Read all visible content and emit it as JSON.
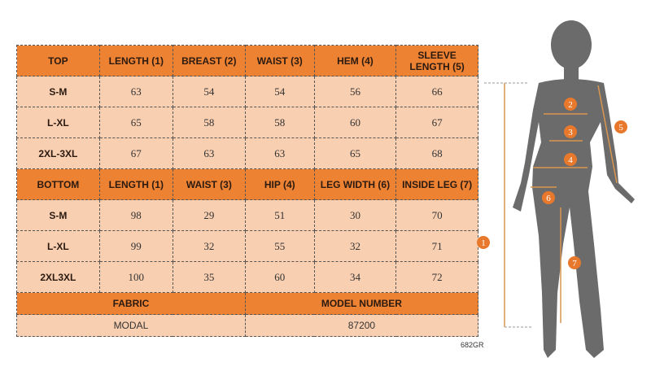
{
  "top": {
    "headers": [
      "TOP",
      "LENGTH (1)",
      "BREAST (2)",
      "WAIST (3)",
      "HEM (4)",
      "SLEEVE LENGTH (5)"
    ],
    "rows": [
      [
        "S-M",
        "63",
        "54",
        "54",
        "56",
        "66"
      ],
      [
        "L-XL",
        "65",
        "58",
        "58",
        "60",
        "67"
      ],
      [
        "2XL-3XL",
        "67",
        "63",
        "63",
        "65",
        "68"
      ]
    ]
  },
  "bottom": {
    "headers": [
      "BOTTOM",
      "LENGTH (1)",
      "WAIST (3)",
      "HIP (4)",
      "LEG WIDTH (6)",
      "INSIDE LEG (7)"
    ],
    "rows": [
      [
        "S-M",
        "98",
        "29",
        "51",
        "30",
        "70"
      ],
      [
        "L-XL",
        "99",
        "32",
        "55",
        "32",
        "71"
      ],
      [
        "2XL3XL",
        "100",
        "35",
        "60",
        "34",
        "72"
      ]
    ]
  },
  "fabric": {
    "label": "FABRIC",
    "value": "MODAL"
  },
  "model": {
    "label": "MODEL NUMBER",
    "value": "87200"
  },
  "code": "682GR",
  "figure": {
    "markers": [
      "1",
      "2",
      "3",
      "4",
      "5",
      "6",
      "7"
    ]
  },
  "colors": {
    "header": "#ee8233",
    "cell": "#f9cfb1",
    "silhouette": "#6b6b6b"
  }
}
